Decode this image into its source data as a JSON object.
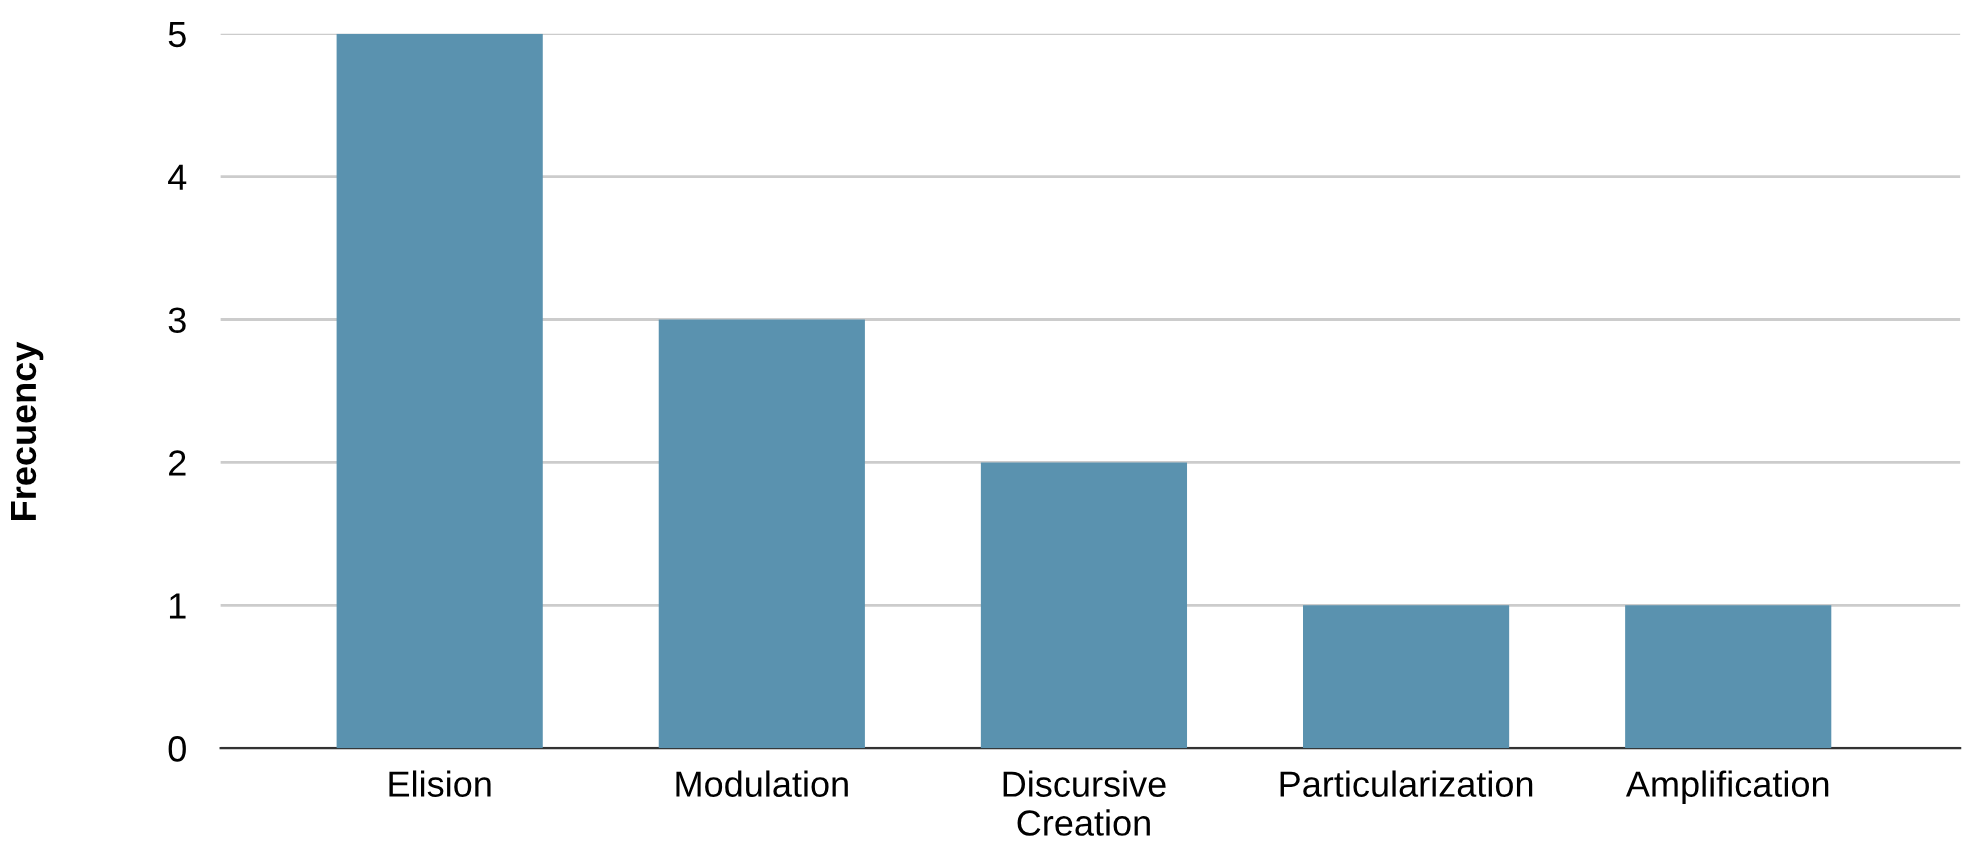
{
  "chart_data": {
    "type": "bar",
    "ylabel": "Frecuency",
    "categories": [
      "Elision",
      "Modulation",
      "Discursive\nCreation",
      "Particularization",
      "Amplification"
    ],
    "values": [
      5,
      3,
      2,
      1,
      1
    ],
    "color": "#5a92af",
    "ylim": [
      0,
      5
    ],
    "yticks": [
      0,
      1,
      2,
      3,
      4,
      5
    ],
    "grid": "y",
    "legend": false
  }
}
